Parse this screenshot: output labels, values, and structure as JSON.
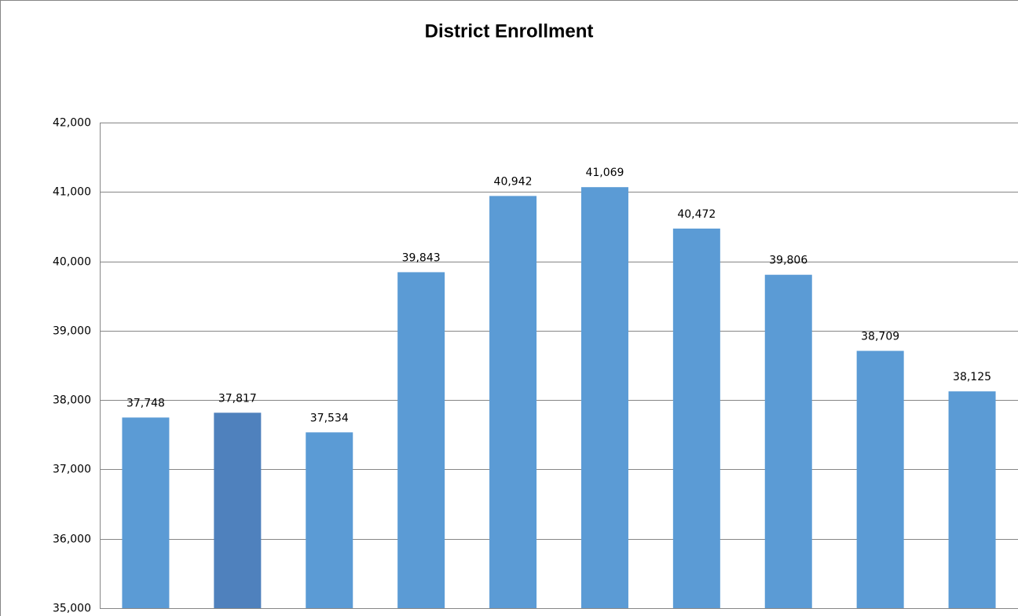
{
  "chart_data": {
    "type": "bar",
    "title": "District Enrollment",
    "categories": [
      null,
      null,
      null,
      null,
      null,
      null,
      null,
      null,
      null,
      null
    ],
    "values": [
      37748,
      37817,
      37534,
      39843,
      40942,
      41069,
      40472,
      39806,
      38709,
      38125
    ],
    "value_labels": [
      "37,748",
      "37,817",
      "37,534",
      "39,843",
      "40,942",
      "41,069",
      "40,472",
      "39,806",
      "38,709",
      "38,125"
    ],
    "colors": [
      "#5b9bd5",
      "#4f81bd",
      "#5b9bd5",
      "#5b9bd5",
      "#5b9bd5",
      "#5b9bd5",
      "#5b9bd5",
      "#5b9bd5",
      "#5b9bd5",
      "#5b9bd5"
    ],
    "ylim": [
      35000,
      42000
    ],
    "yticks": [
      {
        "value": 35000,
        "label": "35,000"
      },
      {
        "value": 36000,
        "label": "36,000"
      },
      {
        "value": 37000,
        "label": "37,000"
      },
      {
        "value": 38000,
        "label": "38,000"
      },
      {
        "value": 39000,
        "label": "39,000"
      },
      {
        "value": 40000,
        "label": "40,000"
      },
      {
        "value": 41000,
        "label": "41,000"
      },
      {
        "value": 42000,
        "label": "42,000"
      }
    ],
    "grid": true
  }
}
